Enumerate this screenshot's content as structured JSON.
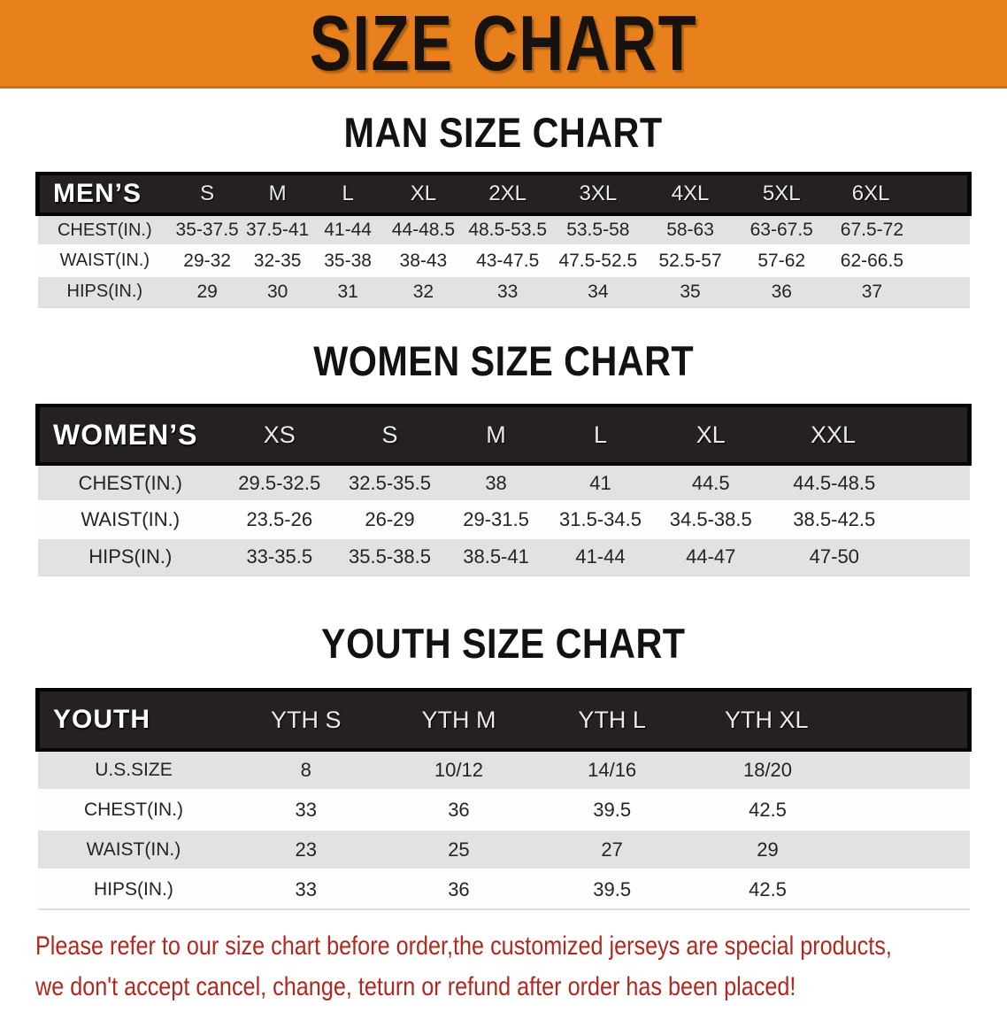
{
  "banner": {
    "title": "SIZE CHART"
  },
  "colors": {
    "banner_bg": "#E8811C",
    "table_header_bg": "#262121",
    "row_alt_bg": "#E2E2E2",
    "footer_red": "#B0281E"
  },
  "sections": [
    {
      "heading": "MAN SIZE CHART",
      "group_label": "MEN’S",
      "sizes": [
        "S",
        "M",
        "L",
        "XL",
        "2XL",
        "3XL",
        "4XL",
        "5XL",
        "6XL"
      ],
      "rows": [
        {
          "label": "CHEST(IN.)",
          "values": [
            "35-37.5",
            "37.5-41",
            "41-44",
            "44-48.5",
            "48.5-53.5",
            "53.5-58",
            "58-63",
            "63-67.5",
            "67.5-72"
          ]
        },
        {
          "label": "WAIST(IN.)",
          "values": [
            "29-32",
            "32-35",
            "35-38",
            "38-43",
            "43-47.5",
            "47.5-52.5",
            "52.5-57",
            "57-62",
            "62-66.5"
          ]
        },
        {
          "label": "HIPS(IN.)",
          "values": [
            "29",
            "30",
            "31",
            "32",
            "33",
            "34",
            "35",
            "36",
            "37"
          ]
        }
      ]
    },
    {
      "heading": "WOMEN SIZE CHART",
      "group_label": "WOMEN’S",
      "sizes": [
        "XS",
        "S",
        "M",
        "L",
        "XL",
        "XXL"
      ],
      "rows": [
        {
          "label": "CHEST(IN.)",
          "values": [
            "29.5-32.5",
            "32.5-35.5",
            "38",
            "41",
            "44.5",
            "44.5-48.5"
          ]
        },
        {
          "label": "WAIST(IN.)",
          "values": [
            "23.5-26",
            "26-29",
            "29-31.5",
            "31.5-34.5",
            "34.5-38.5",
            "38.5-42.5"
          ]
        },
        {
          "label": "HIPS(IN.)",
          "values": [
            "33-35.5",
            "35.5-38.5",
            "38.5-41",
            "41-44",
            "44-47",
            "47-50"
          ]
        }
      ]
    },
    {
      "heading": "YOUTH SIZE CHART",
      "group_label": "YOUTH",
      "sizes": [
        "YTH S",
        "YTH M",
        "YTH L",
        "YTH XL"
      ],
      "rows": [
        {
          "label": "U.S.SIZE",
          "values": [
            "8",
            "10/12",
            "14/16",
            "18/20"
          ]
        },
        {
          "label": "CHEST(IN.)",
          "values": [
            "33",
            "36",
            "39.5",
            "42.5"
          ]
        },
        {
          "label": "WAIST(IN.)",
          "values": [
            "23",
            "25",
            "27",
            "29"
          ]
        },
        {
          "label": "HIPS(IN.)",
          "values": [
            "33",
            "36",
            "39.5",
            "42.5"
          ]
        }
      ]
    }
  ],
  "footer": {
    "line1": "Please refer to our size chart before order,the customized jerseys are special products,",
    "line2": "we don't accept cancel, change, teturn or refund after order has been placed!"
  }
}
